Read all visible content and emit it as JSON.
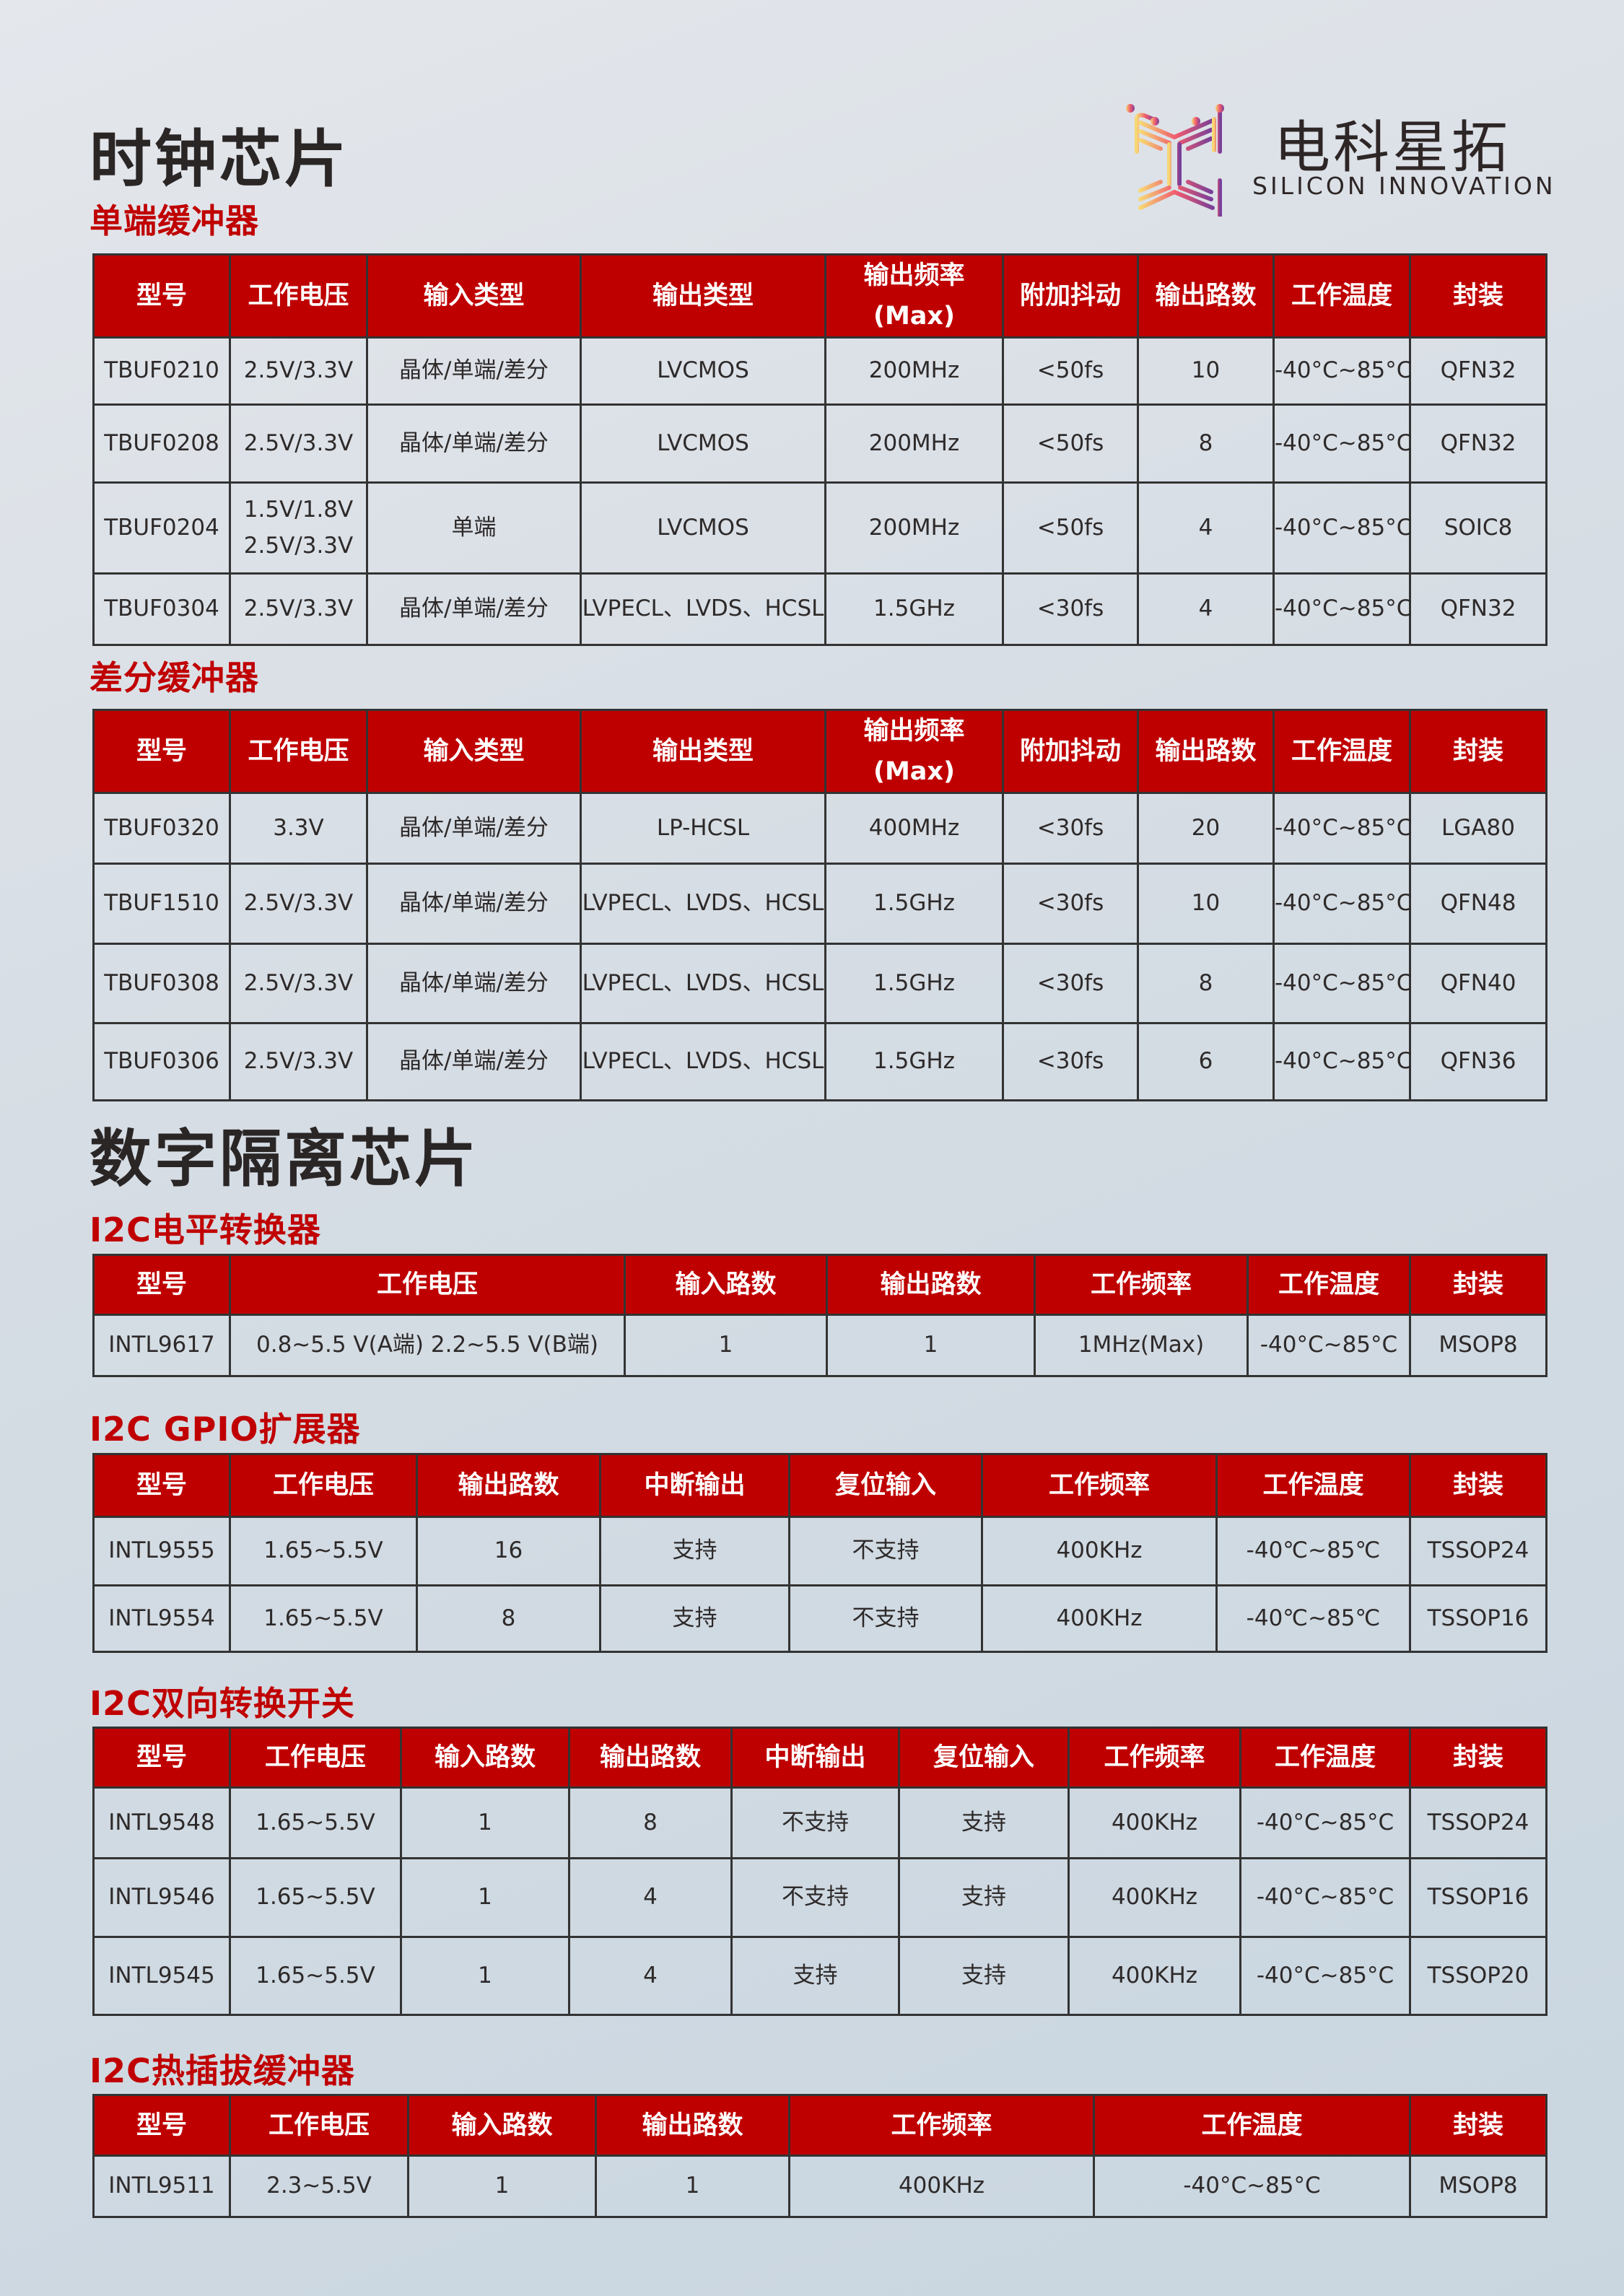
{
  "logo": {
    "name_cn": "电科星拓",
    "name_en": "SILICON INNOVATION",
    "colors": [
      "#f7d774",
      "#ef5a6f",
      "#7a3f98"
    ]
  },
  "accent_color": "#bf0000",
  "sections": [
    {
      "title": "时钟芯片",
      "subsections": [
        {
          "title": "单端缓冲器",
          "headers": [
            "型号",
            "工作电压",
            "输入类型",
            "输出类型",
            "输出频率(Max)",
            "附加抖动",
            "输出路数",
            "工作温度",
            "封装"
          ],
          "rows": [
            [
              "TBUF0210",
              "2.5V/3.3V",
              "晶体/单端/差分",
              "LVCMOS",
              "200MHz",
              "<50fs",
              "10",
              "-40°C~85°C",
              "QFN32"
            ],
            [
              "TBUF0208",
              "2.5V/3.3V",
              "晶体/单端/差分",
              "LVCMOS",
              "200MHz",
              "<50fs",
              "8",
              "-40°C~85°C",
              "QFN32"
            ],
            [
              "TBUF0204",
              "1.5V/1.8V\n2.5V/3.3V",
              "单端",
              "LVCMOS",
              "200MHz",
              "<50fs",
              "4",
              "-40°C~85°C",
              "SOIC8"
            ],
            [
              "TBUF0304",
              "2.5V/3.3V",
              "晶体/单端/差分",
              "LVPECL、LVDS、HCSL",
              "1.5GHz",
              "<30fs",
              "4",
              "-40°C~85°C",
              "QFN32"
            ]
          ]
        },
        {
          "title": "差分缓冲器",
          "headers": [
            "型号",
            "工作电压",
            "输入类型",
            "输出类型",
            "输出频率(Max)",
            "附加抖动",
            "输出路数",
            "工作温度",
            "封装"
          ],
          "rows": [
            [
              "TBUF0320",
              "3.3V",
              "晶体/单端/差分",
              "LP-HCSL",
              "400MHz",
              "<30fs",
              "20",
              "-40°C~85°C",
              "LGA80"
            ],
            [
              "TBUF1510",
              "2.5V/3.3V",
              "晶体/单端/差分",
              "LVPECL、LVDS、HCSL",
              "1.5GHz",
              "<30fs",
              "10",
              "-40°C~85°C",
              "QFN48"
            ],
            [
              "TBUF0308",
              "2.5V/3.3V",
              "晶体/单端/差分",
              "LVPECL、LVDS、HCSL",
              "1.5GHz",
              "<30fs",
              "8",
              "-40°C~85°C",
              "QFN40"
            ],
            [
              "TBUF0306",
              "2.5V/3.3V",
              "晶体/单端/差分",
              "LVPECL、LVDS、HCSL",
              "1.5GHz",
              "<30fs",
              "6",
              "-40°C~85°C",
              "QFN36"
            ]
          ]
        }
      ]
    },
    {
      "title": "数字隔离芯片",
      "subsections": [
        {
          "title": "I2C电平转换器",
          "headers": [
            "型号",
            "工作电压",
            "输入路数",
            "输出路数",
            "工作频率",
            "工作温度",
            "封装"
          ],
          "rows": [
            [
              "INTL9617",
              "0.8~5.5 V(A端)    2.2~5.5 V(B端)",
              "1",
              "1",
              "1MHz(Max)",
              "-40°C~85°C",
              "MSOP8"
            ]
          ]
        },
        {
          "title": "I2C GPIO扩展器",
          "headers": [
            "型号",
            "工作电压",
            "输出路数",
            "中断输出",
            "复位输入",
            "工作频率",
            "工作温度",
            "封装"
          ],
          "rows": [
            [
              "INTL9555",
              "1.65~5.5V",
              "16",
              "支持",
              "不支持",
              "400KHz",
              "-40℃~85℃",
              "TSSOP24"
            ],
            [
              "INTL9554",
              "1.65~5.5V",
              "8",
              "支持",
              "不支持",
              "400KHz",
              "-40℃~85℃",
              "TSSOP16"
            ]
          ]
        },
        {
          "title": "I2C双向转换开关",
          "headers": [
            "型号",
            "工作电压",
            "输入路数",
            "输出路数",
            "中断输出",
            "复位输入",
            "工作频率",
            "工作温度",
            "封装"
          ],
          "rows": [
            [
              "INTL9548",
              "1.65~5.5V",
              "1",
              "8",
              "不支持",
              "支持",
              "400KHz",
              "-40°C~85°C",
              "TSSOP24"
            ],
            [
              "INTL9546",
              "1.65~5.5V",
              "1",
              "4",
              "不支持",
              "支持",
              "400KHz",
              "-40°C~85°C",
              "TSSOP16"
            ],
            [
              "INTL9545",
              "1.65~5.5V",
              "1",
              "4",
              "支持",
              "支持",
              "400KHz",
              "-40°C~85°C",
              "TSSOP20"
            ]
          ]
        },
        {
          "title": "I2C热插拔缓冲器",
          "headers": [
            "型号",
            "工作电压",
            "输入路数",
            "输出路数",
            "工作频率",
            "工作温度",
            "封装"
          ],
          "rows": [
            [
              "INTL9511",
              "2.3~5.5V",
              "1",
              "1",
              "400KHz",
              "-40°C~85°C",
              "MSOP8"
            ]
          ]
        }
      ]
    }
  ]
}
